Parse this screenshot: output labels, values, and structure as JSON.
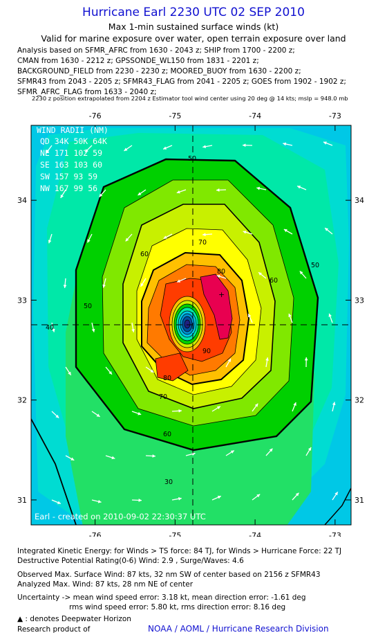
{
  "header": {
    "title": "Hurricane Earl 2230 UTC 02 SEP 2010",
    "subtitle": "Max 1-min sustained surface winds (kt)",
    "validity": "Valid for marine exposure over water, open terrain exposure over land"
  },
  "analysis_lines": [
    "Analysis based on SFMR_AFRC from 1630 - 2043 z; SHIP from 1700 - 2200 z;",
    "CMAN from 1630 - 2212 z; GPSSONDE_WL150 from 1831 - 2201 z;",
    "BACKGROUND_FIELD from 2230 - 2230 z; MOORED_BUOY from 1630 - 2200 z;",
    "SFMR43 from 2043 - 2205 z; SFMR43_FLAG from 2041 - 2205 z; GOES from 1902 - 1902 z;",
    "SFMR_AFRC_FLAG from 1633 - 2040 z;"
  ],
  "position_note": "2230 z position extrapolated from 2204 z Estimator tool wind center using 20 deg @ 14 kts; mslp = 948.0 mb",
  "map": {
    "lon_range": [
      -76.8,
      -72.8
    ],
    "lat_range": [
      30.75,
      34.75
    ],
    "lon_ticks": [
      -76,
      -75,
      -74,
      -73
    ],
    "lat_ticks": [
      31,
      32,
      33,
      34
    ],
    "center": {
      "lon": -74.8,
      "lat": 32.7
    },
    "contour_labels": [
      "30",
      "40",
      "50",
      "50",
      "50",
      "60",
      "60",
      "60",
      "70",
      "70",
      "80",
      "80",
      "90"
    ],
    "wind_radii": {
      "title": "WIND RADII (NM)",
      "header": "QD  34K  50K  64K",
      "rows": [
        "NE  171  102   59",
        "SE  163  103   60",
        "SW  157   93   59",
        "NW  167   99   56"
      ]
    },
    "credit": "Earl - created on 2010-09-02  22:30:37 UTC"
  },
  "footer": {
    "ike": "Integrated Kinetic Energy:  for Winds > TS force: 84 TJ,  for Winds > Hurricane Force: 22 TJ",
    "dpr": "Destructive Potential Rating(0-6)   Wind: 2.9 , Surge/Waves: 4.6",
    "obs": "Observed Max. Surface Wind: 87 kts, 32 nm SW of center based on 2156 z SFMR43",
    "analyzed": "Analyzed Max. Wind: 87 kts, 28 nm NE of center",
    "unc1": "Uncertainty -> mean wind speed error: 3.18 kt,   mean direction error:  -1.61 deg",
    "unc2": "rms wind speed error: 5.80 kt,    rms direction error: 8.16 deg",
    "deepwater": ": denotes Deepwater Horizon",
    "research": "Research product of",
    "noaa": "NOAA / AOML / Hurricane Research Division"
  },
  "colors": {
    "title": "#1010d0",
    "levels": [
      "#00c8e6",
      "#00dcd2",
      "#00e8a8",
      "#22e066",
      "#00d000",
      "#80e800",
      "#c8f000",
      "#ffff00",
      "#ffc000",
      "#ff7a00",
      "#ff3c00",
      "#e80050"
    ]
  }
}
